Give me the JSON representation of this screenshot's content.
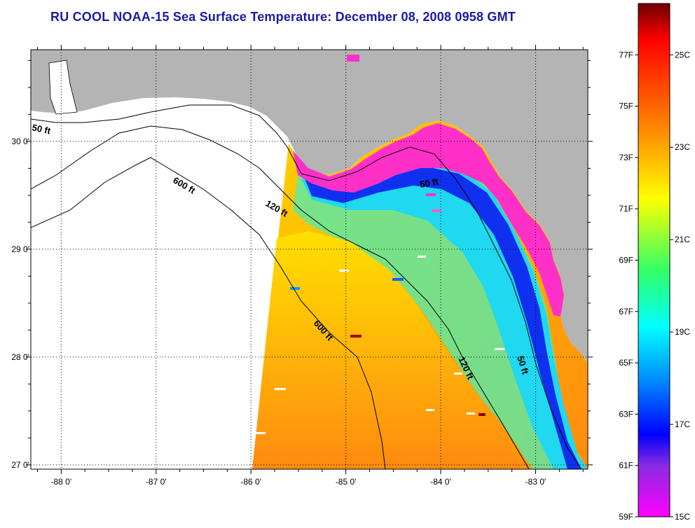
{
  "title": "RU COOL  NOAA-15  Sea Surface Temperature:  December 08, 2008 0958 GMT",
  "map": {
    "lon_range": [
      -88.32,
      -82.45
    ],
    "lat_range": [
      26.96,
      30.85
    ],
    "lon_ticks": [
      {
        "value": -88,
        "label": "-88 0'"
      },
      {
        "value": -87,
        "label": "-87 0'"
      },
      {
        "value": -86,
        "label": "-86 0'"
      },
      {
        "value": -85,
        "label": "-85 0'"
      },
      {
        "value": -84,
        "label": "-84 0'"
      },
      {
        "value": -83,
        "label": "-83 0'"
      }
    ],
    "lat_ticks": [
      {
        "value": 27,
        "label": "27 0'"
      },
      {
        "value": 28,
        "label": "28 0'"
      },
      {
        "value": 29,
        "label": "29 0'"
      },
      {
        "value": 30,
        "label": "30 0'"
      }
    ],
    "contour_labels": [
      {
        "text": "50 ft"
      },
      {
        "text": "600 ft"
      },
      {
        "text": "120 ft"
      },
      {
        "text": "50 ft"
      },
      {
        "text": "600 ft"
      },
      {
        "text": "120 ft"
      },
      {
        "text": "50 ft"
      }
    ],
    "colors": {
      "land": "#b4b4b4",
      "no_data": "#ffffff",
      "grid": "#000000"
    }
  },
  "colorbar": {
    "range_f": [
      59,
      79
    ],
    "fahrenheit_labels": [
      {
        "value": 77,
        "label": "77F"
      },
      {
        "value": 75,
        "label": "75F"
      },
      {
        "value": 73,
        "label": "73F"
      },
      {
        "value": 71,
        "label": "71F"
      },
      {
        "value": 69,
        "label": "69F"
      },
      {
        "value": 67,
        "label": "67F"
      },
      {
        "value": 65,
        "label": "65F"
      },
      {
        "value": 63,
        "label": "63F"
      },
      {
        "value": 61,
        "label": "61F"
      },
      {
        "value": 59,
        "label": "59F"
      }
    ],
    "celsius_labels": [
      {
        "value_f": 77,
        "label": "25C"
      },
      {
        "value_f": 73.4,
        "label": "23C"
      },
      {
        "value_f": 69.8,
        "label": "21C"
      },
      {
        "value_f": 66.2,
        "label": "19C"
      },
      {
        "value_f": 62.6,
        "label": "17C"
      },
      {
        "value_f": 59,
        "label": "15C"
      }
    ],
    "color_stops": [
      "#8b0000",
      "#ff0000",
      "#ff8c00",
      "#ffff00",
      "#00ff7f",
      "#00ffff",
      "#0060ff",
      "#0000ff",
      "#8a2be2",
      "#ff00ff"
    ]
  }
}
